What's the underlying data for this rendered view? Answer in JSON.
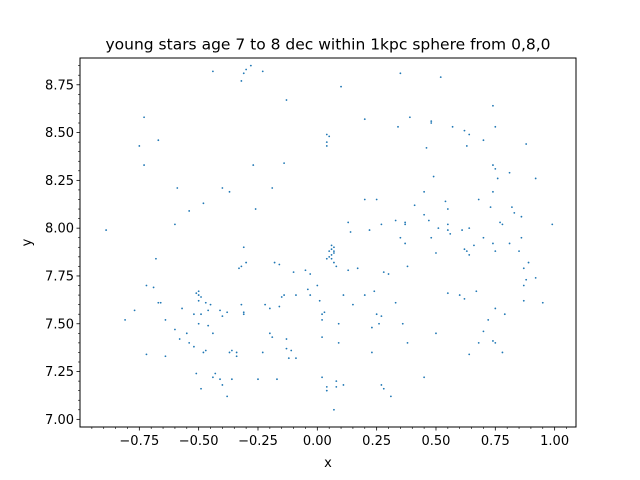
{
  "chart_data": {
    "type": "scatter",
    "title": "young stars age 7 to 8 dec within 1kpc sphere from 0,8,0",
    "xlabel": "x",
    "ylabel": "y",
    "xlim": [
      -1.0,
      1.09
    ],
    "ylim": [
      6.96,
      8.89
    ],
    "x_ticks": [
      -0.75,
      -0.5,
      -0.25,
      0.0,
      0.25,
      0.5,
      0.75,
      1.0
    ],
    "x_tick_labels": [
      "−0.75",
      "−0.50",
      "−0.25",
      "0.00",
      "0.25",
      "0.50",
      "0.75",
      "1.00"
    ],
    "y_ticks": [
      7.0,
      7.25,
      7.5,
      7.75,
      8.0,
      8.25,
      8.5,
      8.75
    ],
    "y_tick_labels": [
      "7.00",
      "7.25",
      "7.50",
      "7.75",
      "8.00",
      "8.25",
      "8.50",
      "8.75"
    ],
    "grid": false,
    "marker_color": "#1f77b4",
    "points": [
      [
        -0.44,
        8.82
      ],
      [
        -0.3,
        8.83
      ],
      [
        -0.28,
        8.85
      ],
      [
        -0.23,
        8.82
      ],
      [
        -0.31,
        8.81
      ],
      [
        -0.32,
        8.77
      ],
      [
        -0.13,
        8.67
      ],
      [
        0.1,
        8.74
      ],
      [
        0.35,
        8.81
      ],
      [
        0.52,
        8.79
      ],
      [
        -0.73,
        8.58
      ],
      [
        -0.67,
        8.46
      ],
      [
        -0.75,
        8.43
      ],
      [
        -0.73,
        8.33
      ],
      [
        0.04,
        8.49
      ],
      [
        0.05,
        8.48
      ],
      [
        0.04,
        8.45
      ],
      [
        0.04,
        8.43
      ],
      [
        0.2,
        8.57
      ],
      [
        0.34,
        8.53
      ],
      [
        0.39,
        8.58
      ],
      [
        0.48,
        8.56
      ],
      [
        0.48,
        8.55
      ],
      [
        0.46,
        8.42
      ],
      [
        0.57,
        8.53
      ],
      [
        0.62,
        8.51
      ],
      [
        0.64,
        8.49
      ],
      [
        0.74,
        8.64
      ],
      [
        0.75,
        8.53
      ],
      [
        0.7,
        8.46
      ],
      [
        0.63,
        8.43
      ],
      [
        0.88,
        8.44
      ],
      [
        -0.14,
        8.34
      ],
      [
        -0.27,
        8.33
      ],
      [
        0.74,
        8.33
      ],
      [
        0.75,
        8.31
      ],
      [
        0.81,
        8.29
      ],
      [
        0.92,
        8.26
      ],
      [
        -0.59,
        8.21
      ],
      [
        -0.4,
        8.21
      ],
      [
        -0.37,
        8.19
      ],
      [
        -0.19,
        8.21
      ],
      [
        -0.48,
        8.13
      ],
      [
        -0.54,
        8.09
      ],
      [
        -0.26,
        8.1
      ],
      [
        -0.6,
        8.02
      ],
      [
        0.49,
        8.27
      ],
      [
        0.45,
        8.19
      ],
      [
        0.76,
        8.26
      ],
      [
        0.54,
        8.14
      ],
      [
        0.41,
        8.12
      ],
      [
        0.2,
        8.15
      ],
      [
        0.25,
        8.15
      ],
      [
        0.68,
        8.15
      ],
      [
        0.74,
        8.19
      ],
      [
        0.73,
        8.11
      ],
      [
        0.82,
        8.11
      ],
      [
        0.83,
        8.08
      ],
      [
        0.86,
        8.06
      ],
      [
        0.77,
        8.03
      ],
      [
        0.78,
        8.02
      ],
      [
        0.99,
        8.02
      ],
      [
        0.55,
        8.1
      ],
      [
        0.45,
        8.07
      ],
      [
        0.47,
        8.04
      ],
      [
        0.33,
        8.04
      ],
      [
        0.37,
        8.03
      ],
      [
        0.37,
        8.02
      ],
      [
        0.27,
        8.02
      ],
      [
        0.13,
        8.03
      ],
      [
        0.14,
        7.98
      ],
      [
        0.22,
        7.99
      ],
      [
        0.51,
        8.0
      ],
      [
        0.55,
        8.02
      ],
      [
        0.55,
        7.99
      ],
      [
        0.56,
        7.97
      ],
      [
        0.61,
        7.99
      ],
      [
        0.64,
        8.0
      ],
      [
        -0.89,
        7.99
      ],
      [
        0.66,
        7.91
      ],
      [
        0.62,
        7.89
      ],
      [
        0.63,
        7.88
      ],
      [
        0.64,
        7.86
      ],
      [
        0.7,
        7.95
      ],
      [
        0.74,
        7.92
      ],
      [
        0.75,
        7.88
      ],
      [
        0.81,
        7.92
      ],
      [
        0.86,
        7.95
      ],
      [
        0.85,
        7.88
      ],
      [
        0.35,
        7.95
      ],
      [
        0.37,
        7.92
      ],
      [
        0.48,
        7.95
      ],
      [
        0.5,
        7.87
      ],
      [
        0.06,
        7.91
      ],
      [
        0.06,
        7.89
      ],
      [
        0.07,
        7.88
      ],
      [
        0.07,
        7.9
      ],
      [
        0.05,
        7.88
      ],
      [
        0.07,
        7.87
      ],
      [
        0.06,
        7.86
      ],
      [
        0.05,
        7.85
      ],
      [
        0.06,
        7.84
      ],
      [
        0.07,
        7.82
      ],
      [
        0.04,
        7.84
      ],
      [
        -0.31,
        7.9
      ],
      [
        -0.32,
        7.8
      ],
      [
        -0.33,
        7.79
      ],
      [
        -0.3,
        7.82
      ],
      [
        -0.18,
        7.82
      ],
      [
        -0.16,
        7.81
      ],
      [
        -0.1,
        7.77
      ],
      [
        -0.05,
        7.78
      ],
      [
        -0.03,
        7.76
      ],
      [
        0.08,
        7.8
      ],
      [
        0.17,
        7.79
      ],
      [
        0.13,
        7.78
      ],
      [
        0.28,
        7.77
      ],
      [
        0.3,
        7.76
      ],
      [
        0.38,
        7.8
      ],
      [
        0.89,
        7.82
      ],
      [
        0.87,
        7.79
      ],
      [
        0.88,
        7.73
      ],
      [
        0.87,
        7.7
      ],
      [
        0.92,
        7.74
      ],
      [
        -0.68,
        7.84
      ],
      [
        -0.72,
        7.7
      ],
      [
        -0.69,
        7.69
      ],
      [
        -0.66,
        7.61
      ],
      [
        -0.67,
        7.61
      ],
      [
        -0.57,
        7.58
      ],
      [
        -0.5,
        7.67
      ],
      [
        -0.51,
        7.66
      ],
      [
        -0.5,
        7.65
      ],
      [
        -0.49,
        7.64
      ],
      [
        -0.5,
        7.62
      ],
      [
        -0.47,
        7.61
      ],
      [
        -0.45,
        7.6
      ],
      [
        -0.46,
        7.57
      ],
      [
        -0.49,
        7.55
      ],
      [
        -0.52,
        7.55
      ],
      [
        -0.41,
        7.57
      ],
      [
        -0.38,
        7.56
      ],
      [
        -0.4,
        7.54
      ],
      [
        -0.32,
        7.6
      ],
      [
        -0.31,
        7.56
      ],
      [
        -0.31,
        7.55
      ],
      [
        -0.22,
        7.6
      ],
      [
        -0.2,
        7.58
      ],
      [
        -0.16,
        7.59
      ],
      [
        -0.15,
        7.64
      ],
      [
        -0.14,
        7.65
      ],
      [
        -0.09,
        7.65
      ],
      [
        -0.04,
        7.68
      ],
      [
        -0.03,
        7.65
      ],
      [
        0.0,
        7.7
      ],
      [
        0.01,
        7.62
      ],
      [
        0.03,
        7.56
      ],
      [
        0.11,
        7.65
      ],
      [
        0.15,
        7.6
      ],
      [
        0.2,
        7.65
      ],
      [
        0.24,
        7.67
      ],
      [
        0.25,
        7.55
      ],
      [
        0.27,
        7.54
      ],
      [
        0.33,
        7.61
      ],
      [
        0.55,
        7.66
      ],
      [
        0.6,
        7.65
      ],
      [
        0.62,
        7.63
      ],
      [
        0.67,
        7.67
      ],
      [
        0.75,
        7.58
      ],
      [
        0.79,
        7.55
      ],
      [
        0.95,
        7.61
      ],
      [
        0.87,
        7.62
      ],
      [
        -0.77,
        7.57
      ],
      [
        -0.81,
        7.52
      ],
      [
        -0.64,
        7.52
      ],
      [
        -0.6,
        7.47
      ],
      [
        -0.55,
        7.45
      ],
      [
        -0.58,
        7.42
      ],
      [
        -0.54,
        7.4
      ],
      [
        -0.52,
        7.38
      ],
      [
        -0.5,
        7.5
      ],
      [
        -0.46,
        7.49
      ],
      [
        -0.44,
        7.45
      ],
      [
        -0.47,
        7.36
      ],
      [
        -0.48,
        7.35
      ],
      [
        -0.36,
        7.36
      ],
      [
        -0.37,
        7.35
      ],
      [
        -0.34,
        7.35
      ],
      [
        -0.34,
        7.33
      ],
      [
        -0.23,
        7.35
      ],
      [
        -0.2,
        7.45
      ],
      [
        -0.19,
        7.43
      ],
      [
        -0.13,
        7.42
      ],
      [
        -0.13,
        7.37
      ],
      [
        -0.11,
        7.36
      ],
      [
        -0.12,
        7.32
      ],
      [
        -0.09,
        7.32
      ],
      [
        0.02,
        7.43
      ],
      [
        0.02,
        7.52
      ],
      [
        0.02,
        7.55
      ],
      [
        0.09,
        7.5
      ],
      [
        0.09,
        7.4
      ],
      [
        0.23,
        7.48
      ],
      [
        0.26,
        7.5
      ],
      [
        0.23,
        7.35
      ],
      [
        0.36,
        7.5
      ],
      [
        0.38,
        7.4
      ],
      [
        0.5,
        7.45
      ],
      [
        0.64,
        7.34
      ],
      [
        0.68,
        7.4
      ],
      [
        0.74,
        7.41
      ],
      [
        0.75,
        7.4
      ],
      [
        0.78,
        7.35
      ],
      [
        0.7,
        7.46
      ],
      [
        0.72,
        7.52
      ],
      [
        -0.72,
        7.34
      ],
      [
        -0.64,
        7.33
      ],
      [
        -0.51,
        7.24
      ],
      [
        -0.49,
        7.16
      ],
      [
        -0.43,
        7.24
      ],
      [
        -0.44,
        7.22
      ],
      [
        -0.41,
        7.21
      ],
      [
        -0.4,
        7.18
      ],
      [
        -0.36,
        7.21
      ],
      [
        -0.38,
        7.12
      ],
      [
        -0.25,
        7.21
      ],
      [
        -0.17,
        7.21
      ],
      [
        0.02,
        7.22
      ],
      [
        0.04,
        7.17
      ],
      [
        0.04,
        7.15
      ],
      [
        0.08,
        7.2
      ],
      [
        0.08,
        7.17
      ],
      [
        0.11,
        7.18
      ],
      [
        0.27,
        7.18
      ],
      [
        0.28,
        7.16
      ],
      [
        0.31,
        7.12
      ],
      [
        0.45,
        7.22
      ],
      [
        0.07,
        7.05
      ]
    ]
  }
}
